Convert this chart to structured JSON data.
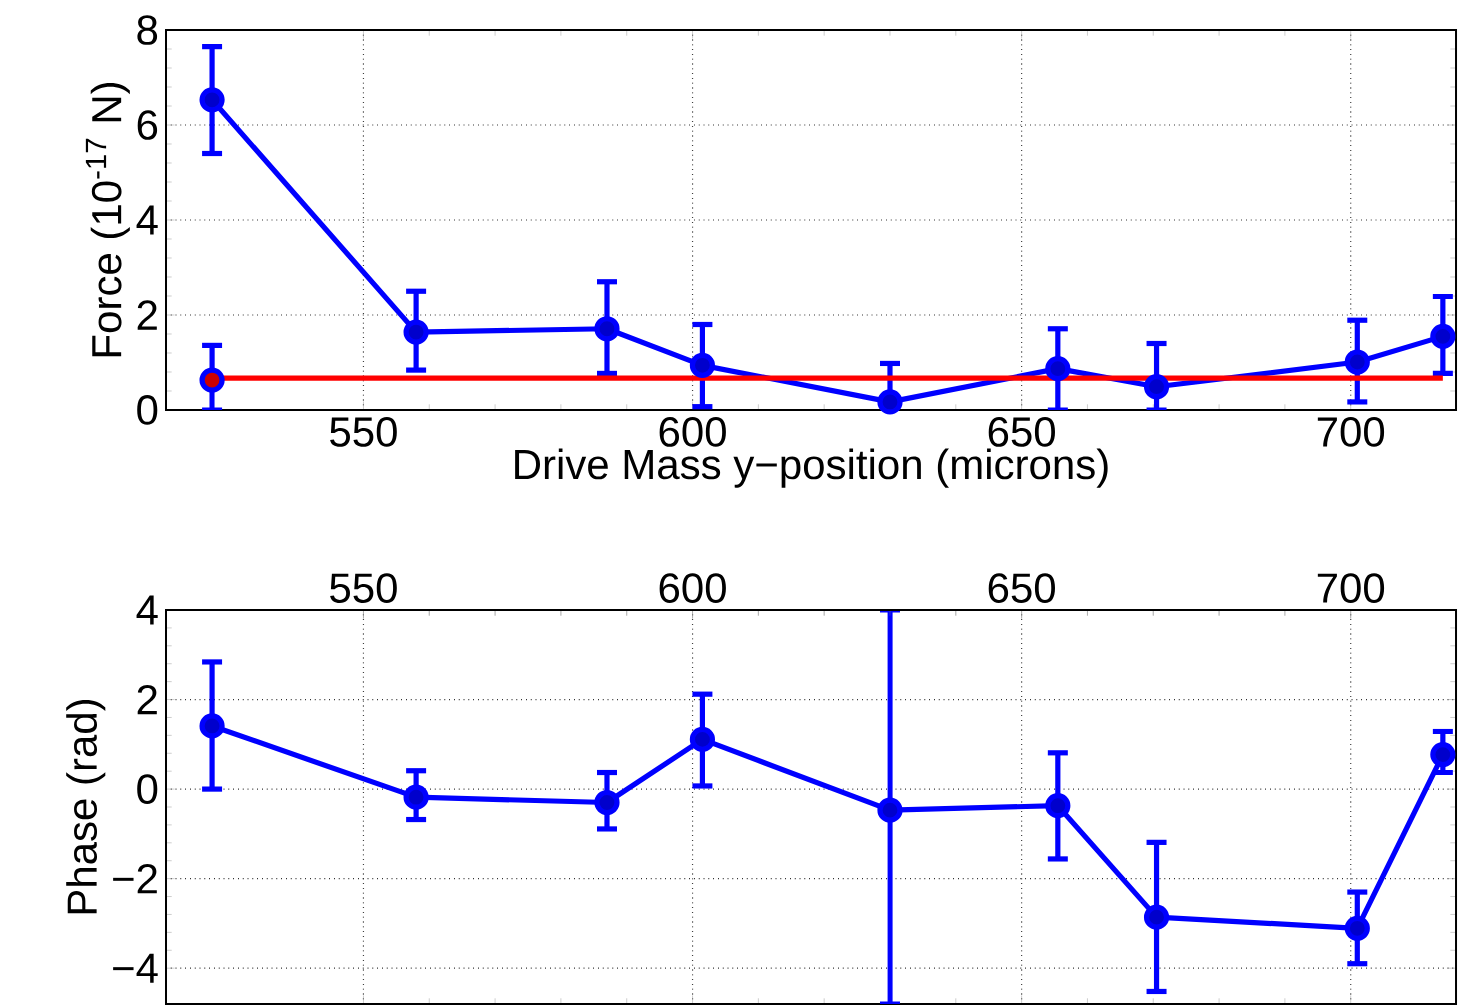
{
  "chart_data": [
    {
      "type": "line",
      "xlabel": "Drive Mass y−position (microns)",
      "ylabel": "Force (10$^{-17}$ N)",
      "x": [
        527,
        558,
        587,
        601.5,
        630,
        655.5,
        670.5,
        701,
        714
      ],
      "xlim": [
        520,
        716
      ],
      "xticks": [
        550,
        600,
        650,
        700
      ],
      "ylim": [
        0,
        8
      ],
      "yticks": [
        0,
        2,
        4,
        6,
        8
      ],
      "grid": true,
      "series": [
        {
          "color": "#0000ff",
          "marker": "circle",
          "values": [
            6.53,
            1.64,
            1.71,
            0.94,
            0.17,
            0.87,
            0.49,
            1.01,
            1.55
          ],
          "errors": [
            [
              5.4,
              7.65
            ],
            [
              0.84,
              2.5
            ],
            [
              0.77,
              2.7
            ],
            [
              0.07,
              1.8
            ],
            [
              0,
              0.98
            ],
            [
              0,
              1.71
            ],
            [
              0,
              1.4
            ],
            [
              0.17,
              1.89
            ],
            [
              0.77,
              2.39
            ]
          ]
        },
        {
          "type": "scatter",
          "color": "#0000ff",
          "marker": "circle",
          "values": [
            0.63,
            null,
            null,
            null,
            null,
            null,
            null,
            null,
            null
          ],
          "errors": [
            [
              0,
              1.36
            ],
            null,
            null,
            null,
            null,
            null,
            null,
            null,
            null
          ]
        },
        {
          "color": "#ff0000",
          "marker": "none",
          "x": [
            527,
            714
          ],
          "values": [
            0.67,
            0.67
          ]
        }
      ]
    },
    {
      "type": "line",
      "ylabel": "Phase (rad)",
      "x": [
        527,
        558,
        587,
        601.5,
        630,
        655.5,
        670.5,
        701,
        714
      ],
      "xlim": [
        520,
        716
      ],
      "xticks": [
        550,
        600,
        650,
        700
      ],
      "tick_labels": "y",
      "x2lim": [
        520,
        716
      ],
      "x2ticks": [
        550,
        600,
        650,
        700
      ],
      "ylim": [
        -4.8,
        4
      ],
      "yticks": [
        {
          "value": -4,
          "label": "−4"
        },
        {
          "value": -2,
          "label": "−2"
        },
        0,
        2,
        4
      ],
      "grid": true,
      "series": [
        {
          "color": "#0000ff",
          "marker": "circle",
          "values": [
            1.41,
            -0.18,
            -0.3,
            1.11,
            -0.47,
            -0.37,
            -2.86,
            -3.11,
            0.77
          ],
          "errors": [
            [
              0,
              2.84
            ],
            [
              -0.68,
              0.41
            ],
            [
              -0.89,
              0.37
            ],
            [
              0.07,
              2.12
            ],
            [
              -4.8,
              4
            ],
            [
              -1.56,
              0.81
            ],
            [
              -4.52,
              -1.19
            ],
            [
              -3.9,
              -2.3
            ],
            [
              0.37,
              1.29
            ]
          ]
        }
      ]
    }
  ]
}
